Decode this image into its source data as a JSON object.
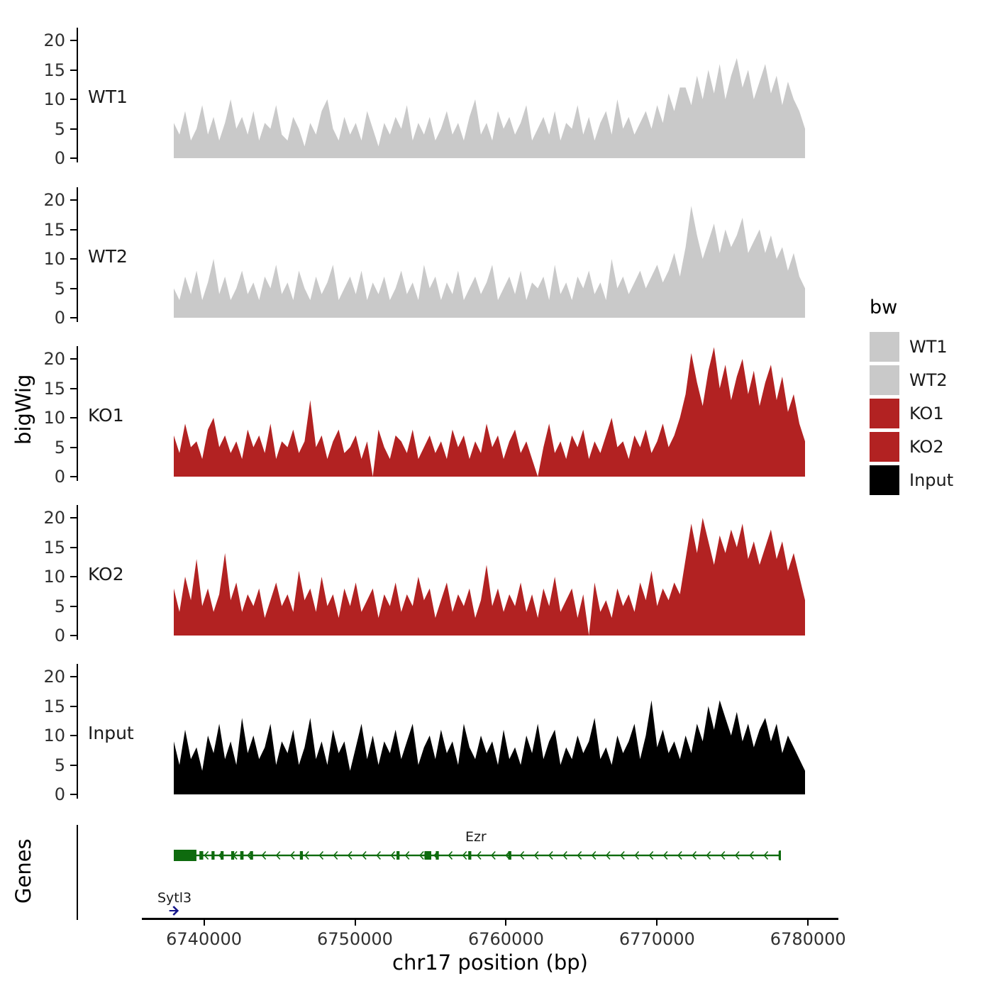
{
  "figure": {
    "y_axis_title": "bigWig",
    "genes_axis_title": "Genes",
    "x_axis_title": "chr17 position (bp)"
  },
  "axes": {
    "y_ticks": [
      0,
      5,
      10,
      15,
      20
    ],
    "x_ticks": [
      6740000,
      6750000,
      6760000,
      6770000,
      6780000
    ]
  },
  "legend": {
    "title": "bw",
    "entries": [
      {
        "label": "WT1",
        "color": "#C9C9C9"
      },
      {
        "label": "WT2",
        "color": "#C9C9C9"
      },
      {
        "label": "KO1",
        "color": "#B22222"
      },
      {
        "label": "KO2",
        "color": "#B22222"
      },
      {
        "label": "Input",
        "color": "#000000"
      }
    ]
  },
  "chart_data": {
    "type": "area",
    "title": "",
    "xlabel": "chr17 position (bp)",
    "ylabel": "bigWig",
    "x_range": [
      6738000,
      6779800
    ],
    "y_range": [
      0,
      22
    ],
    "y_ticks": [
      0,
      5,
      10,
      15,
      20
    ],
    "x_ticks": [
      6740000,
      6750000,
      6760000,
      6770000,
      6780000
    ],
    "legend_position": "right",
    "grid": false,
    "series": [
      {
        "name": "WT1",
        "color": "#C9C9C9",
        "values": [
          6,
          4,
          8,
          3,
          5,
          9,
          4,
          7,
          3,
          6,
          10,
          5,
          7,
          4,
          8,
          3,
          6,
          5,
          9,
          4,
          3,
          7,
          5,
          2,
          6,
          4,
          8,
          10,
          5,
          3,
          7,
          4,
          6,
          3,
          8,
          5,
          2,
          6,
          4,
          7,
          5,
          9,
          3,
          6,
          4,
          7,
          3,
          5,
          8,
          4,
          6,
          3,
          7,
          10,
          4,
          6,
          3,
          8,
          5,
          7,
          4,
          6,
          9,
          3,
          5,
          7,
          4,
          8,
          3,
          6,
          5,
          9,
          4,
          7,
          3,
          6,
          8,
          4,
          10,
          5,
          7,
          4,
          6,
          8,
          5,
          9,
          6,
          11,
          8,
          12,
          12,
          9,
          14,
          10,
          15,
          11,
          16,
          10,
          14,
          17,
          12,
          15,
          10,
          13,
          16,
          11,
          14,
          9,
          13,
          10,
          8,
          5
        ]
      },
      {
        "name": "WT2",
        "color": "#C9C9C9",
        "values": [
          5,
          3,
          7,
          4,
          8,
          3,
          6,
          10,
          4,
          7,
          3,
          5,
          8,
          4,
          6,
          3,
          7,
          5,
          9,
          4,
          6,
          3,
          8,
          5,
          3,
          7,
          4,
          6,
          9,
          3,
          5,
          7,
          4,
          8,
          3,
          6,
          4,
          7,
          3,
          5,
          8,
          4,
          6,
          3,
          9,
          5,
          7,
          3,
          6,
          4,
          8,
          3,
          5,
          7,
          4,
          6,
          9,
          3,
          5,
          7,
          4,
          8,
          3,
          6,
          5,
          7,
          3,
          9,
          4,
          6,
          3,
          7,
          5,
          8,
          4,
          6,
          3,
          10,
          5,
          7,
          4,
          6,
          8,
          5,
          7,
          9,
          6,
          8,
          11,
          7,
          12,
          19,
          14,
          10,
          13,
          16,
          11,
          15,
          12,
          14,
          17,
          11,
          13,
          15,
          11,
          14,
          10,
          12,
          8,
          11,
          7,
          5
        ]
      },
      {
        "name": "KO1",
        "color": "#B22222",
        "values": [
          7,
          4,
          9,
          5,
          6,
          3,
          8,
          10,
          5,
          7,
          4,
          6,
          3,
          8,
          5,
          7,
          4,
          9,
          3,
          6,
          5,
          8,
          4,
          6,
          13,
          5,
          7,
          3,
          6,
          8,
          4,
          5,
          7,
          3,
          6,
          0,
          8,
          5,
          3,
          7,
          6,
          4,
          8,
          3,
          5,
          7,
          4,
          6,
          3,
          8,
          5,
          7,
          3,
          6,
          4,
          9,
          5,
          7,
          3,
          6,
          8,
          4,
          6,
          3,
          0,
          5,
          9,
          4,
          6,
          3,
          7,
          5,
          8,
          3,
          6,
          4,
          7,
          10,
          5,
          6,
          3,
          7,
          5,
          8,
          4,
          6,
          9,
          5,
          7,
          10,
          14,
          21,
          16,
          12,
          18,
          22,
          15,
          19,
          13,
          17,
          20,
          14,
          18,
          12,
          16,
          19,
          13,
          17,
          11,
          14,
          9,
          6
        ]
      },
      {
        "name": "KO2",
        "color": "#B22222",
        "values": [
          8,
          4,
          10,
          6,
          13,
          5,
          8,
          4,
          7,
          14,
          6,
          9,
          4,
          7,
          5,
          8,
          3,
          6,
          9,
          5,
          7,
          4,
          11,
          6,
          8,
          4,
          10,
          5,
          7,
          3,
          8,
          5,
          9,
          4,
          6,
          8,
          3,
          7,
          5,
          9,
          4,
          7,
          5,
          10,
          6,
          8,
          3,
          6,
          9,
          4,
          7,
          5,
          8,
          3,
          6,
          12,
          5,
          8,
          4,
          7,
          5,
          9,
          4,
          7,
          3,
          8,
          5,
          10,
          4,
          6,
          8,
          3,
          7,
          0,
          9,
          4,
          6,
          3,
          8,
          5,
          7,
          4,
          9,
          6,
          11,
          5,
          8,
          6,
          9,
          7,
          13,
          19,
          14,
          20,
          16,
          12,
          17,
          14,
          18,
          15,
          19,
          13,
          16,
          12,
          15,
          18,
          13,
          16,
          11,
          14,
          10,
          6
        ]
      },
      {
        "name": "Input",
        "color": "#000000",
        "values": [
          9,
          5,
          11,
          6,
          8,
          4,
          10,
          7,
          12,
          6,
          9,
          5,
          13,
          7,
          10,
          6,
          8,
          12,
          5,
          9,
          7,
          11,
          5,
          8,
          13,
          6,
          9,
          5,
          11,
          7,
          9,
          4,
          8,
          12,
          6,
          10,
          5,
          9,
          7,
          11,
          6,
          9,
          12,
          5,
          8,
          10,
          6,
          11,
          7,
          9,
          5,
          12,
          8,
          6,
          10,
          7,
          9,
          5,
          11,
          6,
          8,
          5,
          10,
          7,
          12,
          6,
          9,
          11,
          5,
          8,
          6,
          10,
          7,
          9,
          13,
          6,
          8,
          5,
          10,
          7,
          9,
          12,
          6,
          10,
          16,
          8,
          11,
          7,
          9,
          6,
          10,
          7,
          12,
          9,
          15,
          11,
          16,
          13,
          10,
          14,
          9,
          12,
          8,
          11,
          13,
          9,
          12,
          7,
          10,
          8,
          6,
          4
        ]
      }
    ],
    "genes": {
      "items": [
        {
          "name": "Ezr",
          "strand": "-",
          "color": "#0E6B0E",
          "start": 6738000,
          "end": 6778200,
          "label_pos": 6758000,
          "utr": [
            6738000,
            6739500
          ],
          "exons": [
            [
              6739700,
              6739950
            ],
            [
              6740500,
              6740700
            ],
            [
              6741100,
              6741300
            ],
            [
              6741800,
              6742000
            ],
            [
              6742400,
              6742620
            ],
            [
              6743050,
              6743250
            ],
            [
              6746350,
              6746550
            ],
            [
              6752750,
              6752950
            ],
            [
              6754600,
              6755050
            ],
            [
              6755350,
              6755550
            ],
            [
              6757500,
              6757700
            ],
            [
              6760150,
              6760350
            ],
            [
              6778050,
              6778200
            ]
          ],
          "arrow_spacing": 950
        },
        {
          "name": "Sytl3",
          "strand": "+",
          "color": "#15158A",
          "start": 6737700,
          "end": 6738250,
          "label_pos": 6738050
        }
      ]
    }
  }
}
